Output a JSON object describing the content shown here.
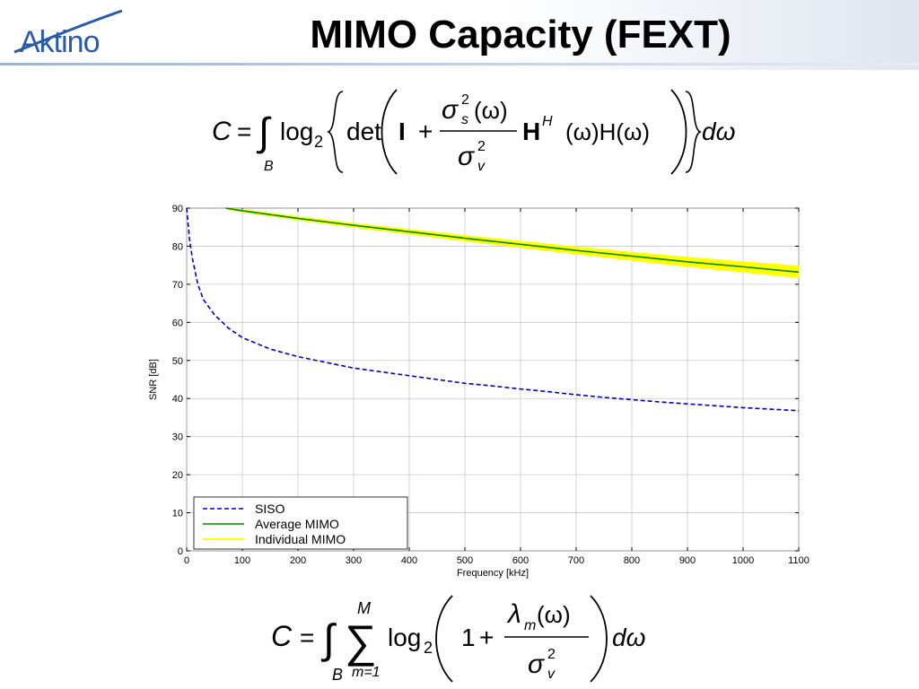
{
  "slide": {
    "title": "MIMO Capacity (FEXT)",
    "logo_text": "Aktino",
    "colors": {
      "logo": "#2a5ba8",
      "title": "#000000"
    }
  },
  "equations": {
    "capacity_mimo": {
      "C": "C",
      "eq": "=",
      "integral": "∫",
      "sub_B": "B",
      "log": "log",
      "log_base": "2",
      "det": "det",
      "I": "I",
      "plus": "+",
      "sigma": "σ",
      "sq": "2",
      "sub_s": "s",
      "sub_v": "v",
      "omega_arg": "(ω)",
      "H": "H",
      "sup_H": "H",
      "tail": "(ω)H(ω)",
      "dw": "dω"
    },
    "capacity_sum": {
      "C": "C",
      "eq": "=",
      "integral": "∫",
      "sub_B": "B",
      "sum": "∑",
      "sum_top": "M",
      "sum_bottom": "m=1",
      "log": "log",
      "log_base": "2",
      "one": "1",
      "plus": "+",
      "lambda": "λ",
      "sub_m": "m",
      "omega_arg": "(ω)",
      "sigma": "σ",
      "sq": "2",
      "sub_v": "v",
      "dw": "dω"
    }
  },
  "chart_data": {
    "type": "line",
    "title": "",
    "xlabel": "Frequency [kHz]",
    "ylabel": "SNR [dB]",
    "xlim": [
      0,
      1100
    ],
    "ylim": [
      0,
      90
    ],
    "xticks": [
      0,
      100,
      200,
      300,
      400,
      500,
      600,
      700,
      800,
      900,
      1000,
      1100
    ],
    "yticks": [
      0,
      10,
      20,
      30,
      40,
      50,
      60,
      70,
      80,
      90
    ],
    "grid": true,
    "legend_position": "bottom-left",
    "series": [
      {
        "name": "SISO",
        "style": "dashed",
        "color": "#0000cc",
        "x": [
          0,
          5,
          10,
          20,
          30,
          50,
          75,
          100,
          150,
          200,
          250,
          300,
          350,
          400,
          450,
          500,
          550,
          600,
          650,
          700,
          750,
          800,
          850,
          900,
          950,
          1000,
          1050,
          1100
        ],
        "y": [
          90,
          82,
          77,
          70,
          66,
          62,
          58.5,
          56,
          53,
          51,
          49.5,
          48,
          47,
          46,
          45,
          44,
          43.3,
          42.5,
          41.8,
          41,
          40.3,
          39.7,
          39.1,
          38.6,
          38.1,
          37.6,
          37.2,
          36.8
        ]
      },
      {
        "name": "Average MIMO",
        "style": "solid",
        "color": "#008800",
        "x": [
          70,
          100,
          200,
          300,
          400,
          500,
          600,
          700,
          800,
          900,
          1000,
          1100
        ],
        "y": [
          90,
          89.3,
          87.3,
          85.5,
          83.8,
          82.1,
          80.5,
          78.9,
          77.4,
          75.9,
          74.6,
          73.2
        ]
      },
      {
        "name": "Individual MIMO",
        "style": "band",
        "color": "#ffff00",
        "x": [
          70,
          100,
          200,
          300,
          400,
          500,
          600,
          700,
          800,
          900,
          1000,
          1100
        ],
        "y_low": [
          89.8,
          89.0,
          86.9,
          85.0,
          83.2,
          81.4,
          79.7,
          78.0,
          76.3,
          74.7,
          73.2,
          71.8
        ],
        "y_high": [
          90,
          89.6,
          87.8,
          86.0,
          84.4,
          82.8,
          81.3,
          79.8,
          78.4,
          77.1,
          75.9,
          74.8
        ]
      }
    ]
  }
}
